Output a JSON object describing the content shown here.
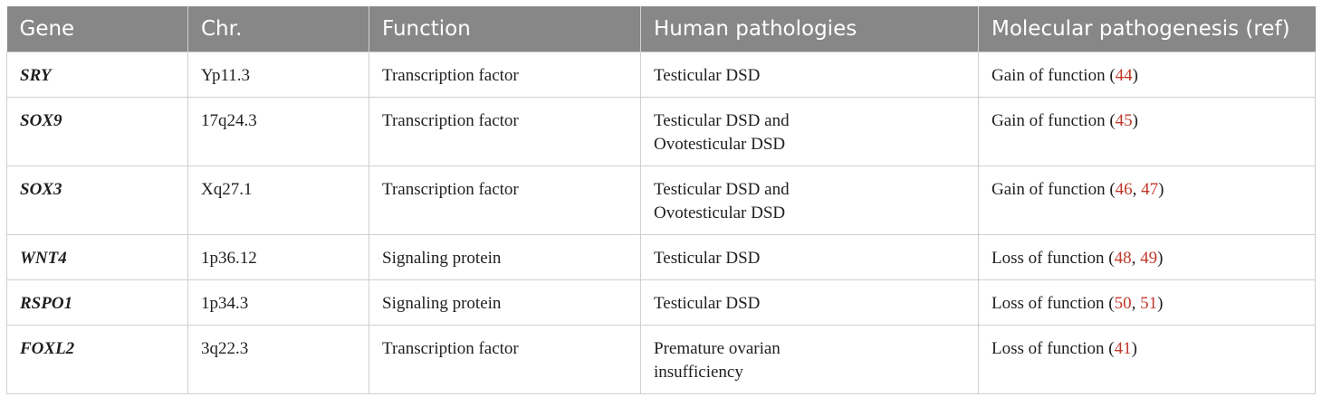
{
  "table": {
    "headers": [
      "Gene",
      "Chr.",
      "Function",
      "Human pathologies",
      "Molecular pathogenesis (ref)"
    ],
    "rows": [
      {
        "gene": "SRY",
        "chr": "Yp11.3",
        "function": "Transcription factor",
        "pathologies": [
          "Testicular DSD"
        ],
        "pathogenesis": {
          "text": "Gain of function",
          "refs": [
            "44"
          ]
        }
      },
      {
        "gene": "SOX9",
        "chr": "17q24.3",
        "function": "Transcription factor",
        "pathologies": [
          "Testicular DSD and",
          "Ovotesticular DSD"
        ],
        "pathogenesis": {
          "text": "Gain of function",
          "refs": [
            "45"
          ]
        }
      },
      {
        "gene": "SOX3",
        "chr": "Xq27.1",
        "function": "Transcription factor",
        "pathologies": [
          "Testicular DSD and",
          "Ovotesticular DSD"
        ],
        "pathogenesis": {
          "text": "Gain of function",
          "refs": [
            "46",
            "47"
          ]
        }
      },
      {
        "gene": "WNT4",
        "chr": "1p36.12",
        "function": "Signaling protein",
        "pathologies": [
          "Testicular DSD"
        ],
        "pathogenesis": {
          "text": "Loss of function",
          "refs": [
            "48",
            "49"
          ]
        }
      },
      {
        "gene": "RSPO1",
        "chr": "1p34.3",
        "function": "Signaling protein",
        "pathologies": [
          "Testicular DSD"
        ],
        "pathogenesis": {
          "text": "Loss of function",
          "refs": [
            "50",
            "51"
          ]
        }
      },
      {
        "gene": "FOXL2",
        "chr": "3q22.3",
        "function": "Transcription factor",
        "pathologies": [
          "Premature ovarian",
          "insufficiency"
        ],
        "pathogenesis": {
          "text": "Loss of function",
          "refs": [
            "41"
          ]
        }
      }
    ]
  },
  "colors": {
    "header_bg": "#878787",
    "header_text": "#ffffff",
    "ref_link": "#c0392b",
    "border": "#cfcfcf"
  }
}
